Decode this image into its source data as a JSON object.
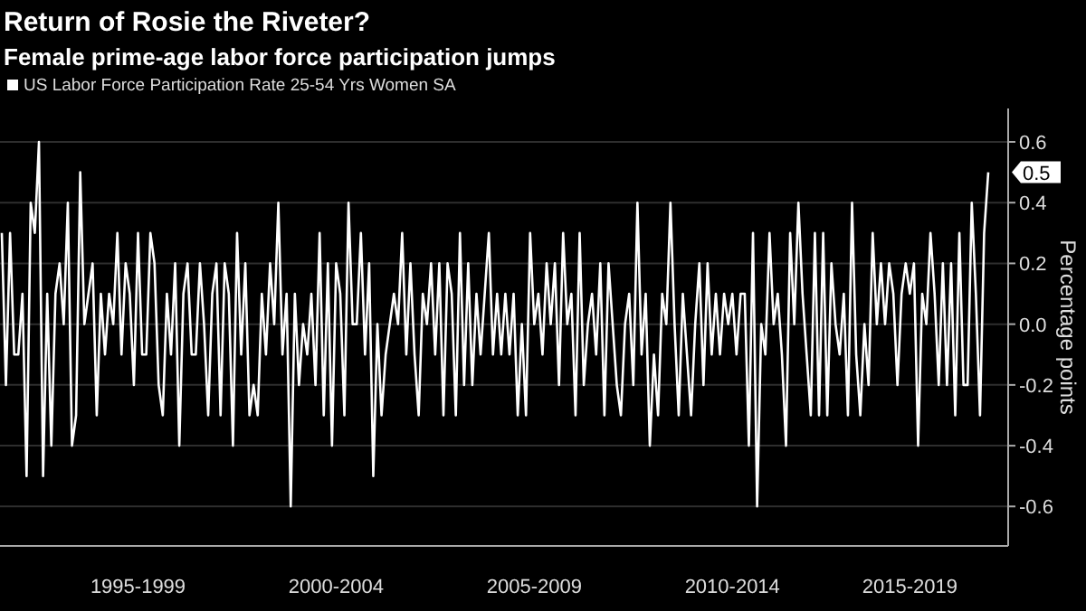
{
  "chart_data": {
    "type": "line",
    "title": "Return of Rosie the Riveter?",
    "subtitle": "Female prime-age labor force participation jumps",
    "ylabel": "Percentage points",
    "ylim": [
      -0.73,
      0.71
    ],
    "yticks": [
      -0.6,
      -0.4,
      -0.2,
      {
        "value": 0,
        "label": "0.0"
      },
      0.2,
      0.4,
      0.6
    ],
    "grid": "y",
    "legend": "top left",
    "line_style": "solid",
    "annotations": [
      "0.5"
    ],
    "categories": [
      null,
      null,
      null,
      null,
      null,
      null,
      null,
      null,
      null,
      null,
      null,
      null,
      null,
      null,
      null,
      null,
      null,
      null,
      null,
      null,
      null,
      null,
      null,
      null,
      null,
      null,
      null,
      null,
      null,
      null,
      null,
      null,
      null,
      "1995-1999",
      null,
      null,
      null,
      null,
      null,
      null,
      null,
      null,
      null,
      null,
      null,
      null,
      null,
      null,
      null,
      null,
      null,
      null,
      null,
      null,
      null,
      null,
      null,
      null,
      null,
      null,
      null,
      null,
      null,
      null,
      null,
      null,
      null,
      null,
      null,
      null,
      null,
      null,
      null,
      null,
      null,
      null,
      null,
      null,
      null,
      null,
      null,
      "2000-2004",
      null,
      null,
      null,
      null,
      null,
      null,
      null,
      null,
      null,
      null,
      null,
      null,
      null,
      null,
      null,
      null,
      null,
      null,
      null,
      null,
      null,
      null,
      null,
      null,
      null,
      null,
      null,
      null,
      null,
      null,
      null,
      null,
      null,
      null,
      null,
      null,
      null,
      null,
      null,
      null,
      null,
      null,
      null,
      null,
      null,
      null,
      null,
      "2005-2009",
      null,
      null,
      null,
      null,
      null,
      null,
      null,
      null,
      null,
      null,
      null,
      null,
      null,
      null,
      null,
      null,
      null,
      null,
      null,
      null,
      null,
      null,
      null,
      null,
      null,
      null,
      null,
      null,
      null,
      null,
      null,
      null,
      null,
      null,
      null,
      null,
      null,
      null,
      null,
      null,
      null,
      null,
      null,
      null,
      null,
      null,
      null,
      "2010-2014",
      null,
      null,
      null,
      null,
      null,
      null,
      null,
      null,
      null,
      null,
      null,
      null,
      null,
      null,
      null,
      null,
      null,
      null,
      null,
      null,
      null,
      null,
      null,
      null,
      null,
      null,
      null,
      null,
      null,
      null,
      null,
      null,
      null,
      null,
      null,
      null,
      null,
      null,
      null,
      null,
      null,
      null,
      "2015-2019",
      null,
      null,
      null,
      null,
      null,
      null,
      null,
      null,
      null,
      null,
      null,
      null,
      null,
      null,
      null,
      null,
      null,
      null,
      null
    ],
    "series": [
      {
        "name": "US Labor Force Participation Rate 25-54 Yrs Women SA",
        "color": "#ffffff",
        "values": [
          0.3,
          -0.2,
          0.3,
          -0.1,
          -0.1,
          0.1,
          -0.5,
          0.4,
          0.3,
          0.6,
          -0.5,
          0.1,
          -0.4,
          0.1,
          0.2,
          0,
          0.4,
          -0.4,
          -0.3,
          0.5,
          0,
          0.1,
          0.2,
          -0.3,
          0.1,
          -0.1,
          0.1,
          0,
          0.3,
          -0.1,
          0.2,
          0.1,
          -0.2,
          0.3,
          -0.1,
          -0.1,
          0.3,
          0.2,
          -0.2,
          -0.3,
          0.1,
          -0.1,
          0.2,
          -0.4,
          0.1,
          0.2,
          -0.1,
          -0.1,
          0.2,
          0,
          -0.3,
          0.1,
          0.2,
          -0.3,
          0.2,
          0.1,
          -0.4,
          0.3,
          -0.1,
          0.2,
          -0.3,
          -0.2,
          -0.3,
          0.1,
          -0.1,
          0.2,
          0,
          0.4,
          -0.1,
          0.1,
          -0.6,
          0.1,
          -0.2,
          0,
          -0.1,
          0.1,
          -0.2,
          0.3,
          -0.3,
          0.2,
          -0.4,
          0.2,
          0.1,
          -0.3,
          0.4,
          0,
          0,
          0.3,
          -0.1,
          0.2,
          -0.5,
          0,
          -0.3,
          -0.1,
          0,
          0.1,
          0,
          0.3,
          -0.1,
          0.2,
          -0.1,
          -0.3,
          0.1,
          0,
          0.2,
          -0.1,
          0.2,
          -0.3,
          0.2,
          0.1,
          -0.3,
          0.3,
          -0.2,
          0.2,
          -0.2,
          0.1,
          -0.1,
          0.1,
          0.3,
          -0.1,
          0.1,
          -0.1,
          0.1,
          -0.1,
          0.1,
          -0.3,
          0,
          -0.3,
          0.3,
          0,
          0.1,
          -0.1,
          0.2,
          0,
          0.2,
          -0.2,
          0.3,
          0,
          0.1,
          -0.3,
          0.3,
          -0.2,
          0,
          0.1,
          -0.1,
          0.2,
          -0.3,
          0.2,
          0,
          -0.2,
          -0.3,
          0,
          0.1,
          -0.2,
          0.4,
          -0.1,
          0.1,
          -0.4,
          -0.1,
          -0.3,
          0.1,
          0,
          0.4,
          0,
          -0.3,
          0.1,
          -0.1,
          -0.3,
          0,
          0.2,
          -0.2,
          0.2,
          -0.1,
          0.1,
          -0.1,
          0.1,
          0,
          0.1,
          -0.1,
          0.1,
          0.1,
          -0.4,
          0.3,
          -0.6,
          0,
          -0.1,
          0.3,
          0,
          0.1,
          -0.1,
          -0.4,
          0.3,
          0,
          0.4,
          0.1,
          -0.1,
          -0.3,
          0.3,
          -0.3,
          0.3,
          -0.3,
          0.2,
          0,
          -0.1,
          0.1,
          -0.3,
          0.4,
          -0.1,
          -0.3,
          0,
          -0.2,
          0.3,
          0,
          0.2,
          0,
          0.2,
          0.1,
          -0.2,
          0.1,
          0.2,
          0.1,
          0.2,
          -0.4,
          0.1,
          0,
          0.3,
          0.1,
          -0.2,
          0.2,
          -0.2,
          0.2,
          -0.3,
          0.3,
          -0.2,
          -0.2,
          0.4,
          0.1,
          -0.3,
          0.3,
          0.5
        ]
      }
    ]
  }
}
